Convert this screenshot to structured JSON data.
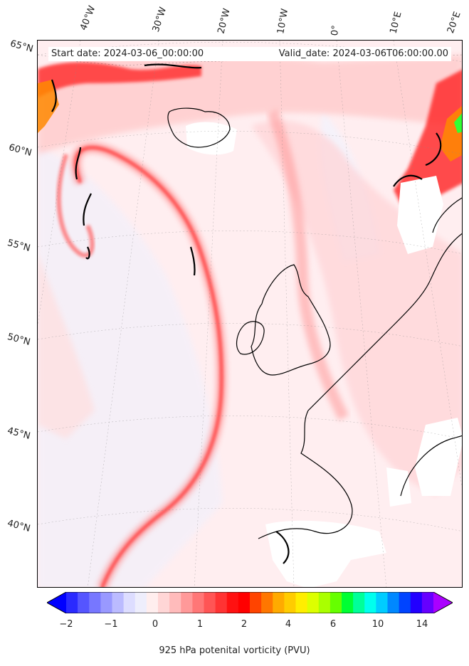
{
  "header": {
    "start_date": "Start date: 2024-03-06_00:00:00",
    "valid_date": "Valid_date: 2024-03-06T06:00:00.00"
  },
  "longitude_labels": [
    "40°W",
    "30°W",
    "20°W",
    "10°W",
    "0°",
    "10°E",
    "20°E"
  ],
  "latitude_labels": [
    "65°N",
    "60°N",
    "55°N",
    "50°N",
    "45°N",
    "40°N"
  ],
  "colorbar": {
    "title": "925 hPa potenital vorticity (PVU)",
    "ticks": [
      "−2",
      "−1",
      "0",
      "1",
      "2",
      "4",
      "6",
      "10",
      "14"
    ],
    "colors": [
      "#0000ff",
      "#2a2aff",
      "#5555ff",
      "#7777ff",
      "#9999ff",
      "#bbbbff",
      "#ddddff",
      "#eeeefc",
      "#ffeeee",
      "#ffd6d6",
      "#ffbbbb",
      "#ff9999",
      "#ff7777",
      "#ff5555",
      "#ff3333",
      "#ff1111",
      "#ff0000",
      "#ff4400",
      "#ff7700",
      "#ffaa00",
      "#ffcc00",
      "#ffee00",
      "#ddff00",
      "#aaff00",
      "#66ff00",
      "#00ff33",
      "#00ff99",
      "#00ffee",
      "#00ccff",
      "#0088ff",
      "#0044ff",
      "#2200ff",
      "#6600ff",
      "#aa00ff"
    ]
  }
}
